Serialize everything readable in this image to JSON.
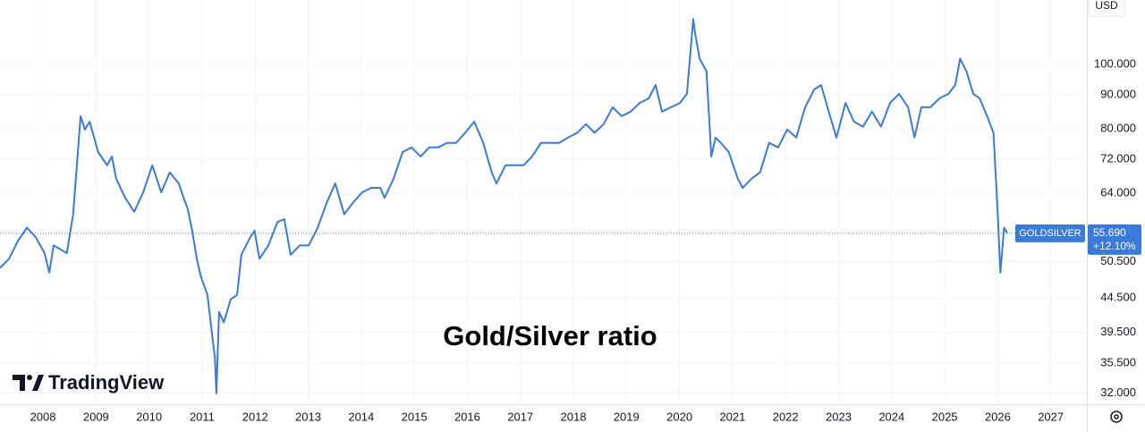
{
  "chart_data": {
    "type": "line",
    "annotation": "Gold/Silver ratio",
    "watermark": "TradingView",
    "currency": "USD",
    "log_scale": true,
    "grid": true,
    "xlim": [
      2007.19,
      2027.68
    ],
    "xticks": [
      2008,
      2009,
      2010,
      2011,
      2012,
      2013,
      2014,
      2015,
      2016,
      2017,
      2018,
      2019,
      2020,
      2021,
      2022,
      2023,
      2024,
      2025,
      2026,
      2027
    ],
    "ylim": [
      30.8,
      125
    ],
    "yticks": [
      {
        "value": 32,
        "label": "32.000"
      },
      {
        "value": 35.5,
        "label": "35.500"
      },
      {
        "value": 39.5,
        "label": "39.500"
      },
      {
        "value": 44.5,
        "label": "44.500"
      },
      {
        "value": 50.5,
        "label": "50.500"
      },
      {
        "value": 64,
        "label": "64.000"
      },
      {
        "value": 72,
        "label": "72.000"
      },
      {
        "value": 80,
        "label": "80.000"
      },
      {
        "value": 90,
        "label": "90.000"
      },
      {
        "value": 100,
        "label": "100.000"
      }
    ],
    "x": [
      2007.19,
      2007.36,
      2007.53,
      2007.7,
      2007.86,
      2008.03,
      2008.12,
      2008.2,
      2008.45,
      2008.57,
      2008.71,
      2008.79,
      2008.88,
      2009.04,
      2009.21,
      2009.3,
      2009.38,
      2009.55,
      2009.72,
      2009.89,
      2010.06,
      2010.23,
      2010.39,
      2010.56,
      2010.65,
      2010.73,
      2010.82,
      2010.9,
      2010.98,
      2011.1,
      2011.24,
      2011.27,
      2011.32,
      2011.41,
      2011.54,
      2011.66,
      2011.74,
      2011.91,
      2011.99,
      2012.08,
      2012.25,
      2012.42,
      2012.55,
      2012.67,
      2012.84,
      2013.01,
      2013.18,
      2013.35,
      2013.51,
      2013.68,
      2013.85,
      2014.02,
      2014.19,
      2014.36,
      2014.44,
      2014.61,
      2014.78,
      2014.95,
      2015.12,
      2015.28,
      2015.45,
      2015.62,
      2015.79,
      2015.96,
      2016.13,
      2016.3,
      2016.46,
      2016.55,
      2016.72,
      2016.89,
      2017.06,
      2017.22,
      2017.39,
      2017.56,
      2017.73,
      2017.9,
      2018.07,
      2018.24,
      2018.4,
      2018.57,
      2018.74,
      2018.91,
      2019.08,
      2019.25,
      2019.42,
      2019.55,
      2019.67,
      2019.84,
      2020.01,
      2020.14,
      2020.26,
      2020.29,
      2020.38,
      2020.51,
      2020.6,
      2020.68,
      2020.78,
      2020.93,
      2021.1,
      2021.19,
      2021.36,
      2021.52,
      2021.69,
      2021.86,
      2022.03,
      2022.2,
      2022.37,
      2022.54,
      2022.67,
      2022.79,
      2022.96,
      2023.13,
      2023.29,
      2023.46,
      2023.63,
      2023.8,
      2023.97,
      2024.14,
      2024.31,
      2024.43,
      2024.56,
      2024.73,
      2024.9,
      2025.07,
      2025.2,
      2025.29,
      2025.41,
      2025.54,
      2025.66,
      2025.8,
      2025.92,
      2026.0,
      2026.05,
      2026.12,
      2026.18
    ],
    "series": [
      {
        "name": "GOLDSILVER",
        "color": "#3a7ad8",
        "values": [
          49.4,
          51,
          54.3,
          56.8,
          55,
          52,
          48.6,
          53.4,
          52,
          59.5,
          83.6,
          79.8,
          82,
          73.8,
          70.5,
          72.7,
          67.3,
          63,
          60,
          64.2,
          70.5,
          64.2,
          68.8,
          66.2,
          63,
          60.6,
          55.9,
          51,
          47.9,
          45,
          36.2,
          32,
          42.4,
          40.9,
          44.3,
          45,
          51.7,
          55,
          56.2,
          51,
          53.4,
          57.9,
          58.5,
          51.7,
          53.4,
          53.4,
          56.8,
          62,
          66.2,
          59.5,
          62,
          64.2,
          65.2,
          65.2,
          63,
          67.3,
          73.8,
          75,
          72.7,
          75,
          75,
          76.2,
          76.2,
          78.9,
          82,
          76.2,
          68.8,
          66.2,
          70.5,
          70.5,
          70.5,
          72.7,
          76.2,
          76.2,
          76.2,
          77.6,
          78.9,
          81.3,
          78.9,
          81.3,
          86.2,
          83.6,
          84.9,
          87.5,
          88.9,
          93.1,
          84.9,
          86.2,
          87.5,
          90.3,
          117,
          112,
          102,
          97.6,
          72.7,
          77.6,
          76.2,
          73.8,
          67.3,
          65.2,
          67.3,
          68.8,
          76.2,
          75,
          79.8,
          77.6,
          86.2,
          91.7,
          93.1,
          86.2,
          77.6,
          87.5,
          82,
          80.6,
          84.9,
          80.6,
          87.5,
          90.3,
          86.2,
          77.6,
          86.2,
          86.2,
          88.9,
          90.3,
          93.1,
          102,
          97.6,
          90.3,
          88.9,
          83.6,
          78.9,
          59.5,
          48.6,
          56.8,
          55.69
        ],
        "last_label": "55.690",
        "change": "+12.10%"
      }
    ]
  }
}
